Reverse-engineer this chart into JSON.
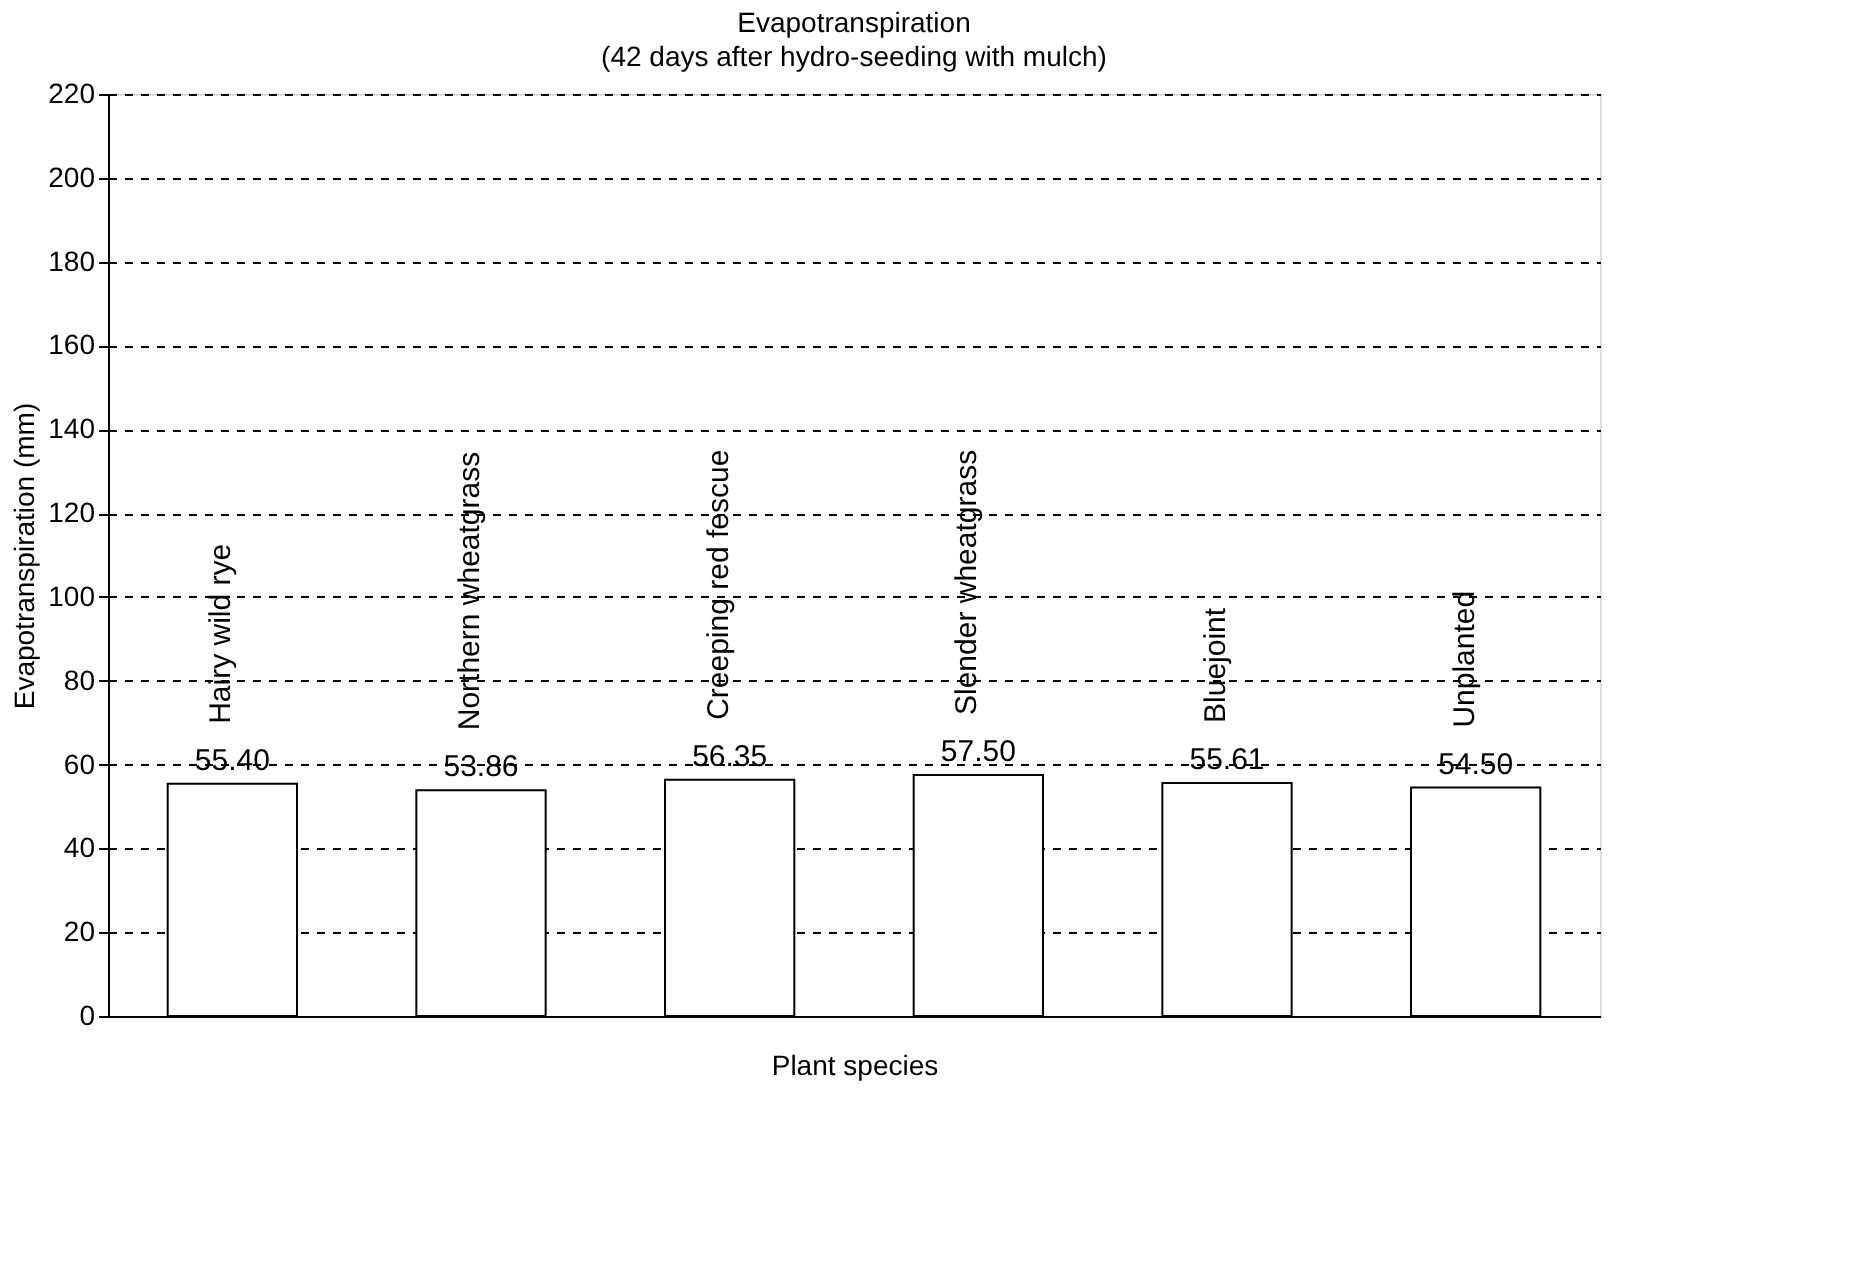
{
  "chart_data": {
    "type": "bar",
    "title": "Evapotranspiration",
    "subtitle": "(42 days after hydro-seeding with mulch)",
    "xlabel": "Plant species",
    "ylabel": "Evapotranspiration (mm)",
    "categories": [
      "Hairy wild rye",
      "Northern wheatgrass",
      "Creeping red fescue",
      "Slender wheatgrass",
      "Bluejoint",
      "Unplanted"
    ],
    "values": [
      55.4,
      53.86,
      56.35,
      57.5,
      55.61,
      54.5
    ],
    "value_labels": [
      "55.40",
      "53.86",
      "56.35",
      "57.50",
      "55.61",
      "54.50"
    ],
    "color": "#ffffff",
    "ylim": [
      0,
      220
    ],
    "yticks": [
      0,
      20,
      40,
      60,
      80,
      100,
      120,
      140,
      160,
      180,
      200,
      220
    ],
    "grid": "y"
  }
}
